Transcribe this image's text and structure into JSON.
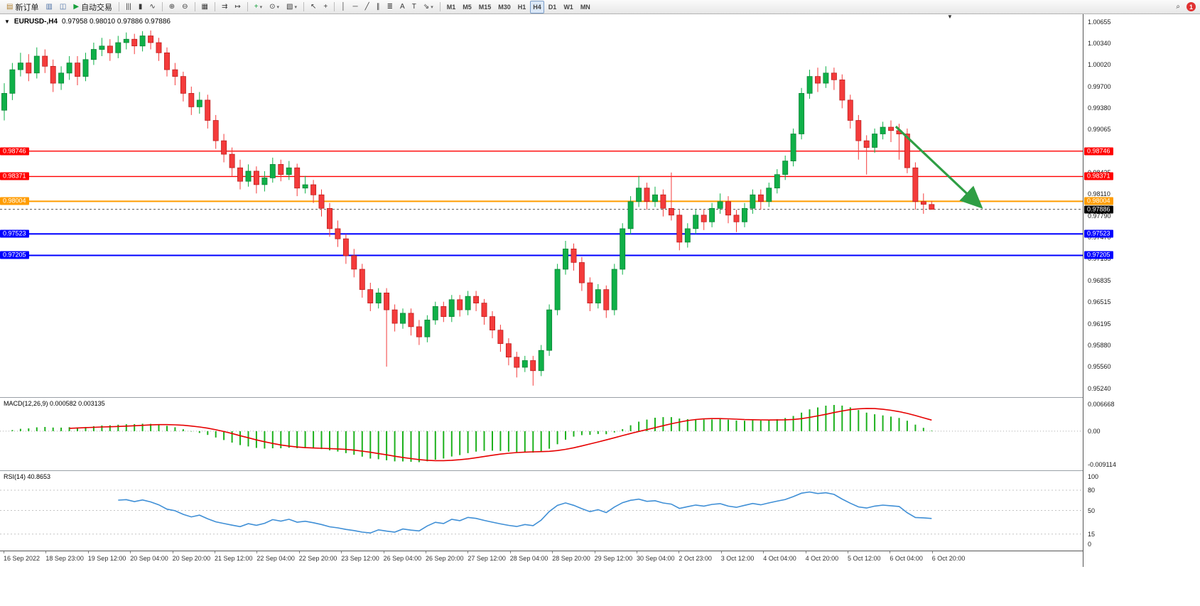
{
  "window": {
    "title_symbol": "EURUSD-,H4",
    "title_ohlc": "0.97958 0.98010 0.97886 0.97886"
  },
  "toolbar": {
    "notification_count": "1",
    "groups": [
      {
        "items": [
          {
            "name": "new-order",
            "icon": "▤",
            "icon_color": "#b08030",
            "label": "新订单"
          },
          {
            "name": "chart-window",
            "icon": "▥",
            "icon_color": "#4a6fa5"
          },
          {
            "name": "market-watch",
            "icon": "◫",
            "icon_color": "#4a6fa5"
          },
          {
            "name": "auto-trading",
            "icon": "▶",
            "icon_color": "#18a03c",
            "label": "自动交易"
          }
        ]
      },
      {
        "items": [
          {
            "name": "bar-chart-mode",
            "icon": "|||"
          },
          {
            "name": "candlestick-mode",
            "icon": "▮"
          },
          {
            "name": "line-chart-mode",
            "icon": "∿"
          }
        ]
      },
      {
        "items": [
          {
            "name": "zoom-in",
            "icon": "⊕"
          },
          {
            "name": "zoom-out",
            "icon": "⊖"
          }
        ]
      },
      {
        "items": [
          {
            "name": "tile-windows",
            "icon": "▦"
          }
        ]
      },
      {
        "items": [
          {
            "name": "auto-scroll",
            "icon": "⇉"
          },
          {
            "name": "chart-shift",
            "icon": "↦"
          }
        ]
      },
      {
        "items": [
          {
            "name": "indicators-list",
            "icon": "+",
            "icon_color": "#18a03c",
            "dropdown": true
          },
          {
            "name": "periods",
            "icon": "⊙",
            "dropdown": true
          },
          {
            "name": "templates",
            "icon": "▧",
            "dropdown": true
          }
        ]
      },
      {
        "items": [
          {
            "name": "cursor",
            "icon": "↖"
          },
          {
            "name": "crosshair",
            "icon": "+"
          }
        ]
      },
      {
        "items": [
          {
            "name": "vertical-line",
            "icon": "│"
          },
          {
            "name": "horizontal-line",
            "icon": "─"
          },
          {
            "name": "trendline",
            "icon": "╱"
          },
          {
            "name": "equidistant-channel",
            "icon": "∥"
          },
          {
            "name": "fibonacci-retracement",
            "icon": "≣"
          },
          {
            "name": "text",
            "icon": "A"
          },
          {
            "name": "text-label",
            "icon": "T"
          },
          {
            "name": "arrows",
            "icon": "⇘",
            "dropdown": true
          }
        ]
      }
    ],
    "timeframes": {
      "active": "H4",
      "items": [
        "M1",
        "M5",
        "M15",
        "M30",
        "H1",
        "H4",
        "D1",
        "W1",
        "MN"
      ]
    }
  },
  "chart_data": {
    "type": "candlestick",
    "symbol": "EURUSD-",
    "timeframe": "H4",
    "ohlc_title": {
      "open": "0.97958",
      "high": "0.98010",
      "low": "0.97886",
      "close": "0.97886"
    },
    "y_range": [
      0.9512,
      1.0077
    ],
    "colors": {
      "bull": "#0fb048",
      "bull_border": "#067c30",
      "bear": "#f43b3b",
      "bear_border": "#b61616",
      "background": "#ffffff"
    },
    "candles": [
      [
        0.9935,
        0.9975,
        0.992,
        0.996
      ],
      [
        0.996,
        1.0005,
        0.995,
        0.9995
      ],
      [
        0.9995,
        1.002,
        0.9985,
        1.0005
      ],
      [
        1.0005,
        1.0018,
        0.9978,
        0.999
      ],
      [
        0.999,
        1.0028,
        0.9982,
        1.0015
      ],
      [
        1.0015,
        1.0025,
        0.999,
        1.0
      ],
      [
        1.0,
        1.001,
        0.9962,
        0.9975
      ],
      [
        0.9975,
        1.0,
        0.9965,
        0.999
      ],
      [
        0.999,
        1.0015,
        0.998,
        1.0005
      ],
      [
        1.0005,
        1.0015,
        0.9972,
        0.9985
      ],
      [
        0.9985,
        1.002,
        0.9978,
        1.001
      ],
      [
        1.001,
        1.0035,
        1.0002,
        1.0025
      ],
      [
        1.0025,
        1.0042,
        1.0015,
        1.003
      ],
      [
        1.003,
        1.004,
        1.0008,
        1.002
      ],
      [
        1.002,
        1.0045,
        1.0012,
        1.0035
      ],
      [
        1.0035,
        1.005,
        1.0025,
        1.004
      ],
      [
        1.004,
        1.0048,
        1.0018,
        1.003
      ],
      [
        1.003,
        1.0052,
        1.0022,
        1.0045
      ],
      [
        1.0045,
        1.0053,
        1.0025,
        1.0035
      ],
      [
        1.0035,
        1.0042,
        1.0008,
        1.002
      ],
      [
        1.002,
        1.0028,
        0.9985,
        0.9995
      ],
      [
        0.9995,
        1.0005,
        0.9972,
        0.9985
      ],
      [
        0.9985,
        0.9992,
        0.9948,
        0.996
      ],
      [
        0.996,
        0.997,
        0.9928,
        0.994
      ],
      [
        0.994,
        0.9962,
        0.993,
        0.995
      ],
      [
        0.995,
        0.9958,
        0.9908,
        0.992
      ],
      [
        0.992,
        0.9928,
        0.9878,
        0.989
      ],
      [
        0.989,
        0.99,
        0.9858,
        0.987
      ],
      [
        0.987,
        0.988,
        0.9838,
        0.985
      ],
      [
        0.985,
        0.9862,
        0.9818,
        0.983
      ],
      [
        0.983,
        0.9855,
        0.9822,
        0.9845
      ],
      [
        0.9845,
        0.9852,
        0.9812,
        0.9825
      ],
      [
        0.9825,
        0.9845,
        0.9815,
        0.9835
      ],
      [
        0.9835,
        0.9865,
        0.9828,
        0.9855
      ],
      [
        0.9855,
        0.9862,
        0.983,
        0.984
      ],
      [
        0.984,
        0.986,
        0.9832,
        0.985
      ],
      [
        0.985,
        0.9856,
        0.9808,
        0.982
      ],
      [
        0.982,
        0.9838,
        0.9812,
        0.9825
      ],
      [
        0.9825,
        0.9832,
        0.9798,
        0.981
      ],
      [
        0.981,
        0.9818,
        0.9778,
        0.979
      ],
      [
        0.979,
        0.9798,
        0.9748,
        0.976
      ],
      [
        0.976,
        0.9772,
        0.9733,
        0.9745
      ],
      [
        0.9745,
        0.9752,
        0.9708,
        0.972
      ],
      [
        0.972,
        0.973,
        0.9688,
        0.97
      ],
      [
        0.97,
        0.9708,
        0.9658,
        0.967
      ],
      [
        0.967,
        0.968,
        0.9638,
        0.965
      ],
      [
        0.965,
        0.9672,
        0.9642,
        0.9665
      ],
      [
        0.9665,
        0.9672,
        0.9556,
        0.964
      ],
      [
        0.964,
        0.9648,
        0.9608,
        0.962
      ],
      [
        0.962,
        0.9642,
        0.9612,
        0.9635
      ],
      [
        0.9635,
        0.9642,
        0.9602,
        0.9615
      ],
      [
        0.9615,
        0.9625,
        0.9588,
        0.96
      ],
      [
        0.96,
        0.9632,
        0.9592,
        0.9625
      ],
      [
        0.9625,
        0.9652,
        0.9618,
        0.9645
      ],
      [
        0.9645,
        0.9652,
        0.9622,
        0.963
      ],
      [
        0.963,
        0.9662,
        0.9622,
        0.9655
      ],
      [
        0.9655,
        0.9662,
        0.963,
        0.964
      ],
      [
        0.964,
        0.9668,
        0.9632,
        0.966
      ],
      [
        0.966,
        0.9668,
        0.9638,
        0.965
      ],
      [
        0.965,
        0.9656,
        0.9618,
        0.963
      ],
      [
        0.963,
        0.9638,
        0.9598,
        0.961
      ],
      [
        0.961,
        0.9618,
        0.9578,
        0.959
      ],
      [
        0.959,
        0.9598,
        0.9558,
        0.957
      ],
      [
        0.957,
        0.9578,
        0.954,
        0.9555
      ],
      [
        0.9555,
        0.9572,
        0.9548,
        0.9565
      ],
      [
        0.9565,
        0.9572,
        0.9528,
        0.955
      ],
      [
        0.955,
        0.9588,
        0.9542,
        0.958
      ],
      [
        0.958,
        0.9648,
        0.9572,
        0.964
      ],
      [
        0.964,
        0.9708,
        0.9632,
        0.97
      ],
      [
        0.97,
        0.9742,
        0.9692,
        0.973
      ],
      [
        0.973,
        0.9738,
        0.9698,
        0.971
      ],
      [
        0.971,
        0.9718,
        0.9668,
        0.968
      ],
      [
        0.968,
        0.9688,
        0.9638,
        0.965
      ],
      [
        0.965,
        0.9678,
        0.9642,
        0.967
      ],
      [
        0.967,
        0.9676,
        0.9628,
        0.964
      ],
      [
        0.964,
        0.9708,
        0.9632,
        0.97
      ],
      [
        0.97,
        0.9768,
        0.9692,
        0.976
      ],
      [
        0.976,
        0.9808,
        0.9752,
        0.98
      ],
      [
        0.98,
        0.9838,
        0.9792,
        0.982
      ],
      [
        0.982,
        0.9828,
        0.9788,
        0.98
      ],
      [
        0.98,
        0.9822,
        0.9792,
        0.981
      ],
      [
        0.981,
        0.9818,
        0.9778,
        0.979
      ],
      [
        0.979,
        0.9843,
        0.9772,
        0.978
      ],
      [
        0.978,
        0.9788,
        0.9728,
        0.974
      ],
      [
        0.974,
        0.9768,
        0.9732,
        0.976
      ],
      [
        0.976,
        0.9788,
        0.9752,
        0.978
      ],
      [
        0.978,
        0.9788,
        0.9758,
        0.977
      ],
      [
        0.977,
        0.9798,
        0.9762,
        0.979
      ],
      [
        0.979,
        0.9812,
        0.9782,
        0.98
      ],
      [
        0.98,
        0.9808,
        0.9768,
        0.978
      ],
      [
        0.978,
        0.9788,
        0.9755,
        0.977
      ],
      [
        0.977,
        0.9798,
        0.9762,
        0.979
      ],
      [
        0.979,
        0.9818,
        0.9782,
        0.981
      ],
      [
        0.981,
        0.9818,
        0.9788,
        0.98
      ],
      [
        0.98,
        0.9828,
        0.9792,
        0.982
      ],
      [
        0.982,
        0.9848,
        0.9812,
        0.984
      ],
      [
        0.984,
        0.9868,
        0.9832,
        0.986
      ],
      [
        0.986,
        0.9908,
        0.9852,
        0.99
      ],
      [
        0.99,
        0.9968,
        0.9892,
        0.996
      ],
      [
        0.996,
        0.9995,
        0.9952,
        0.9985
      ],
      [
        0.9985,
        0.9998,
        0.9962,
        0.9975
      ],
      [
        0.9975,
        1.0,
        0.9968,
        0.999
      ],
      [
        0.999,
        0.9998,
        0.9965,
        0.998
      ],
      [
        0.998,
        0.9988,
        0.9938,
        0.995
      ],
      [
        0.995,
        0.9958,
        0.9908,
        0.992
      ],
      [
        0.992,
        0.9928,
        0.9862,
        0.989
      ],
      [
        0.989,
        0.9898,
        0.984,
        0.988
      ],
      [
        0.988,
        0.9908,
        0.9872,
        0.99
      ],
      [
        0.99,
        0.9918,
        0.9892,
        0.991
      ],
      [
        0.991,
        0.992,
        0.9888,
        0.9905
      ],
      [
        0.9905,
        0.9915,
        0.9862,
        0.99
      ],
      [
        0.99,
        0.9908,
        0.9842,
        0.985
      ],
      [
        0.985,
        0.9858,
        0.9788,
        0.98
      ],
      [
        0.98,
        0.9812,
        0.9782,
        0.9796
      ],
      [
        0.97958,
        0.9801,
        0.97886,
        0.97886
      ]
    ],
    "horizontal_lines": [
      {
        "price": 0.98746,
        "label": "0.98746",
        "color": "#ff0000",
        "width": 1.4
      },
      {
        "price": 0.98371,
        "label": "0.98371",
        "color": "#ff0000",
        "width": 1.4
      },
      {
        "price": 0.98004,
        "label": "0.98004",
        "color": "#ff9c00",
        "width": 2
      },
      {
        "price": 0.97523,
        "label": "0.97523",
        "color": "#0000ff",
        "width": 2
      },
      {
        "price": 0.97205,
        "label": "0.97205",
        "color": "#0000ff",
        "width": 2
      }
    ],
    "current_price": {
      "value": 0.97886,
      "label": "0.97886",
      "tag_color": "#000000"
    },
    "trend_arrow": {
      "from_index": 109.6,
      "from_price": 0.9911,
      "to_index": 119.9,
      "to_price": 0.9794,
      "color": "#2f9e44"
    },
    "y_axis_labels": [
      "1.00655",
      "1.00340",
      "1.00020",
      "0.99700",
      "0.99380",
      "0.99065",
      "0.98745",
      "0.98425",
      "0.98110",
      "0.97790",
      "0.97470",
      "0.97155",
      "0.96835",
      "0.96515",
      "0.96195",
      "0.95880",
      "0.95560",
      "0.95240"
    ],
    "x_axis_labels": [
      "16 Sep 2022",
      "18 Sep 23:00",
      "19 Sep 12:00",
      "20 Sep 04:00",
      "20 Sep 20:00",
      "21 Sep 12:00",
      "22 Sep 04:00",
      "22 Sep 20:00",
      "23 Sep 12:00",
      "26 Sep 04:00",
      "26 Sep 20:00",
      "27 Sep 12:00",
      "28 Sep 04:00",
      "28 Sep 20:00",
      "29 Sep 12:00",
      "30 Sep 04:00",
      "2 Oct 23:00",
      "3 Oct 12:00",
      "4 Oct 04:00",
      "4 Oct 20:00",
      "5 Oct 12:00",
      "6 Oct 04:00",
      "6 Oct 20:00"
    ],
    "indicators": [
      {
        "id": "macd",
        "label": "MACD(12,26,9)",
        "values": "0.000582 0.003135",
        "axis_labels": [
          "0.006668",
          "0.00",
          "-0.009114"
        ],
        "histogram_color": "#1db11d",
        "signal_color": "#e60000"
      },
      {
        "id": "rsi",
        "label": "RSI(14)",
        "values": "40.8653",
        "axis_labels": [
          "100",
          "80",
          "50",
          "15",
          "0"
        ],
        "levels": [
          80,
          50,
          15
        ],
        "line_color": "#3f8fd6"
      }
    ]
  }
}
